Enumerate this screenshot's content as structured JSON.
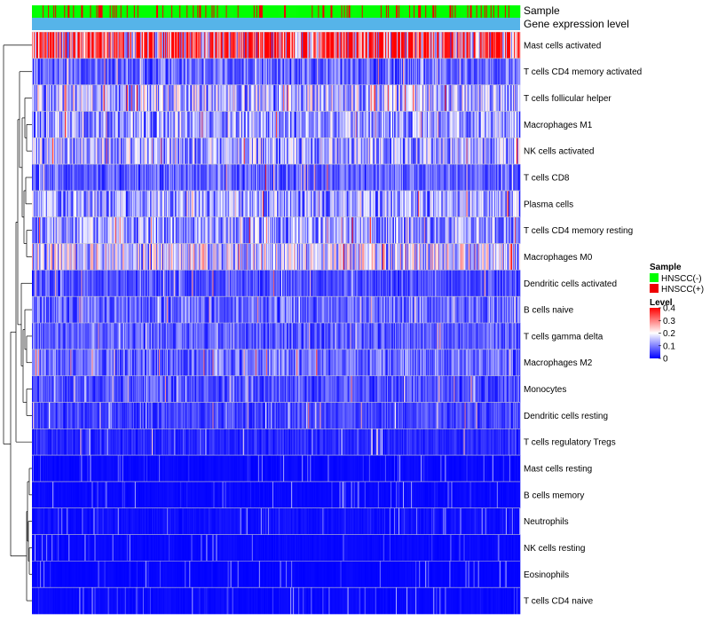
{
  "chart_data": {
    "type": "heatmap",
    "title": "",
    "annotation_tracks": [
      "Sample",
      "Gene expression level"
    ],
    "rows": [
      "Mast cells activated",
      "T cells CD4 memory activated",
      "T cells follicular helper",
      "Macrophages M1",
      "NK cells activated",
      "T cells CD8",
      "Plasma cells",
      "T cells CD4 memory resting",
      "Macrophages M0",
      "Dendritic cells activated",
      "B cells naive",
      "T cells gamma delta",
      "Macrophages M2",
      "Monocytes",
      "Dendritic cells resting",
      "T cells regulatory  Tregs",
      "Mast cells resting",
      "B cells memory",
      "Neutrophils",
      "NK cells resting",
      "Eosinophils",
      "T cells CD4 naive"
    ],
    "row_mean_level": [
      0.33,
      0.08,
      0.14,
      0.12,
      0.13,
      0.07,
      0.12,
      0.12,
      0.16,
      0.06,
      0.08,
      0.07,
      0.08,
      0.06,
      0.05,
      0.03,
      0.01,
      0.01,
      0.02,
      0.01,
      0.005,
      0.01
    ],
    "sample_count": 546,
    "groups": {
      "legend_title": "Sample",
      "items": [
        {
          "name": "HNSCC(-)",
          "color": "#00ff00"
        },
        {
          "name": "HNSCC(+)",
          "color": "#ee0000"
        }
      ],
      "positive_fraction": 0.2
    },
    "color_scale": {
      "legend_title": "Level",
      "min": 0,
      "max": 0.4,
      "ticks": [
        "0.4",
        "0.3",
        "0.2",
        "0.1",
        "0"
      ],
      "tick_values": [
        0.4,
        0.3,
        0.2,
        0.1,
        0
      ],
      "colors": [
        "#0000ff",
        "#ffffff",
        "#ff0000"
      ]
    },
    "expression_track_color": "#56b4e9"
  }
}
